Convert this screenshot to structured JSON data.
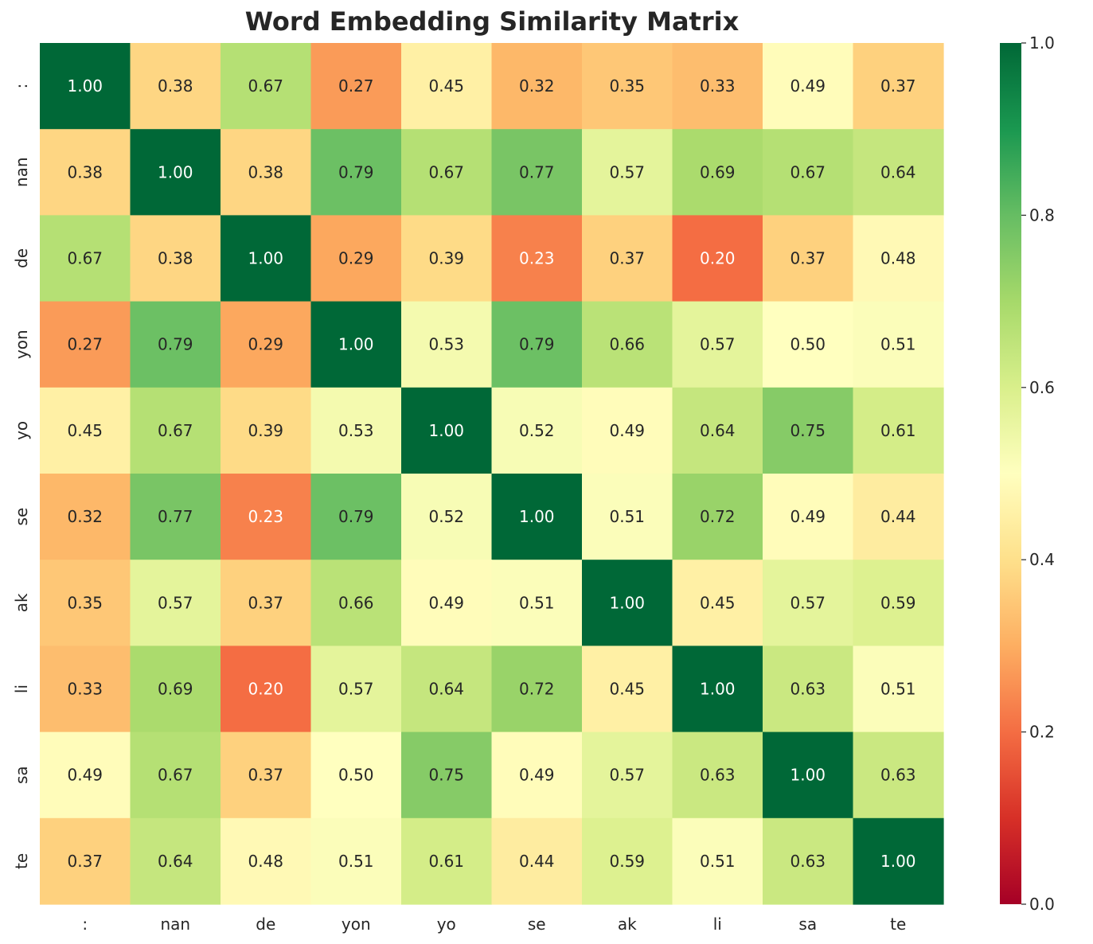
{
  "chart_data": {
    "type": "heatmap",
    "title": "Word Embedding Similarity Matrix",
    "xlabel": "",
    "ylabel": "",
    "x_labels": [
      ":",
      "nan",
      "de",
      "yon",
      "yo",
      "se",
      "ak",
      "li",
      "sa",
      "te"
    ],
    "y_labels": [
      ":",
      "nan",
      "de",
      "yon",
      "yo",
      "se",
      "ak",
      "li",
      "sa",
      "te"
    ],
    "values": [
      [
        1.0,
        0.38,
        0.67,
        0.27,
        0.45,
        0.32,
        0.35,
        0.33,
        0.49,
        0.37
      ],
      [
        0.38,
        1.0,
        0.38,
        0.79,
        0.67,
        0.77,
        0.57,
        0.69,
        0.67,
        0.64
      ],
      [
        0.67,
        0.38,
        1.0,
        0.29,
        0.39,
        0.23,
        0.37,
        0.2,
        0.37,
        0.48
      ],
      [
        0.27,
        0.79,
        0.29,
        1.0,
        0.53,
        0.79,
        0.66,
        0.57,
        0.5,
        0.51
      ],
      [
        0.45,
        0.67,
        0.39,
        0.53,
        1.0,
        0.52,
        0.49,
        0.64,
        0.75,
        0.61
      ],
      [
        0.32,
        0.77,
        0.23,
        0.79,
        0.52,
        1.0,
        0.51,
        0.72,
        0.49,
        0.44
      ],
      [
        0.35,
        0.57,
        0.37,
        0.66,
        0.49,
        0.51,
        1.0,
        0.45,
        0.57,
        0.59
      ],
      [
        0.33,
        0.69,
        0.2,
        0.57,
        0.64,
        0.72,
        0.45,
        1.0,
        0.63,
        0.51
      ],
      [
        0.49,
        0.67,
        0.37,
        0.5,
        0.75,
        0.49,
        0.57,
        0.63,
        1.0,
        0.63
      ],
      [
        0.37,
        0.64,
        0.48,
        0.51,
        0.61,
        0.44,
        0.59,
        0.51,
        0.63,
        1.0
      ]
    ],
    "value_format": "0.00",
    "colormap": "RdYlGn",
    "colormap_stops": [
      "#a50026",
      "#d73027",
      "#f46d43",
      "#fdae61",
      "#fee08b",
      "#ffffbf",
      "#d9ef8b",
      "#a6d96a",
      "#66bd63",
      "#1a9850",
      "#006837"
    ],
    "vmin": 0.0,
    "vmax": 1.0,
    "colorbar_ticks": [
      "0.0",
      "0.2",
      "0.4",
      "0.6",
      "0.8",
      "1.0"
    ],
    "grid": false
  }
}
